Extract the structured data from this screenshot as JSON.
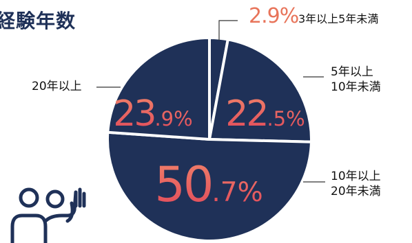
{
  "title": "経験年数",
  "colors": {
    "slice": "#1f3158",
    "label_gradient_top": "#f0826a",
    "label_gradient_bottom": "#e0485a",
    "small_pct": "#e8745a"
  },
  "chart_data": {
    "type": "pie",
    "title": "経験年数",
    "slices": [
      {
        "label": "3年以上5年未満",
        "value": 2.9,
        "pct_int": "2",
        "pct_dec": ".9",
        "pct_sign": "%"
      },
      {
        "label": "5年以上10年未満",
        "label_lines": [
          "5年以上",
          "10年未満"
        ],
        "value": 22.5,
        "pct_int": "22",
        "pct_dec": ".5",
        "pct_sign": "%"
      },
      {
        "label": "10年以上20年未満",
        "label_lines": [
          "10年以上",
          "20年未満"
        ],
        "value": 50.7,
        "pct_int": "50",
        "pct_dec": ".7",
        "pct_sign": "%"
      },
      {
        "label": "20年以上",
        "value": 23.9,
        "pct_int": "23",
        "pct_dec": ".9",
        "pct_sign": "%"
      }
    ]
  },
  "icon": "people-raising-hand-icon"
}
